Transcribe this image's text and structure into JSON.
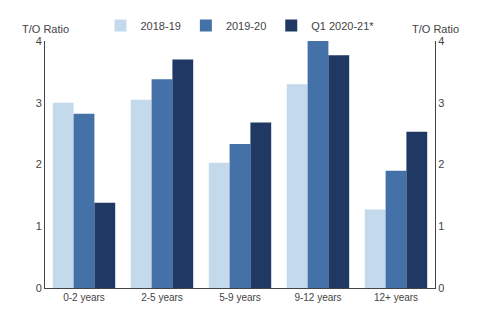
{
  "chart_data": {
    "type": "bar",
    "categories": [
      "0-2 years",
      "2-5 years",
      "5-9 years",
      "9-12 years",
      "12+ years"
    ],
    "series": [
      {
        "name": "2018-19",
        "color": "#c5d9ed",
        "values": [
          3.0,
          3.05,
          2.03,
          3.3,
          1.27
        ]
      },
      {
        "name": "2019-20",
        "color": "#4472a8",
        "values": [
          2.82,
          3.38,
          2.33,
          4.0,
          1.9
        ]
      },
      {
        "name": "Q1 2020-21*",
        "color": "#1f3864",
        "values": [
          1.38,
          3.7,
          2.68,
          3.77,
          2.53
        ]
      }
    ],
    "ylabel": "T/O Ratio",
    "y2label": "T/O Ratio",
    "ylim": [
      0,
      4
    ],
    "yticks": [
      0,
      1,
      2,
      3,
      4
    ],
    "y2lim": [
      0,
      4
    ],
    "y2ticks": [
      0,
      1,
      2,
      3,
      4
    ],
    "grid": false,
    "legend": "top"
  }
}
